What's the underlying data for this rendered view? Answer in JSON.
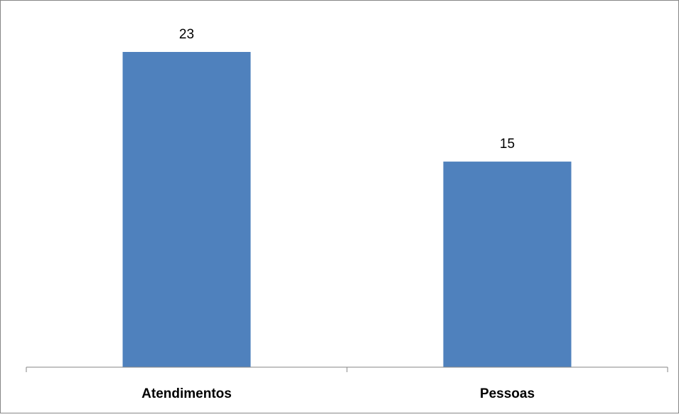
{
  "chart_data": {
    "type": "bar",
    "categories": [
      "Atendimentos",
      "Pessoas"
    ],
    "values": [
      23,
      15
    ],
    "title": "",
    "xlabel": "",
    "ylabel": "",
    "ylim": [
      0,
      25
    ],
    "grid": false,
    "legend": "none",
    "data_labels": true,
    "bar_color": "#4F81BD",
    "border_color": "#868686"
  }
}
